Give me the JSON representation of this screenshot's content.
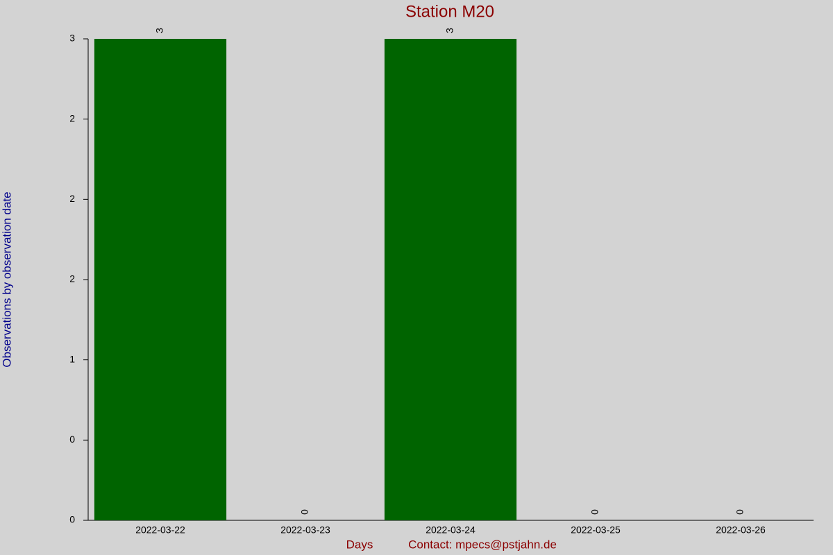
{
  "chart_data": {
    "type": "bar",
    "title": "Station M20",
    "x_label": "Days",
    "y_label": "Observations by observation date",
    "footer": "Contact: mpecs@pstjahn.de",
    "categories": [
      "2022-03-22",
      "2022-03-23",
      "2022-03-24",
      "2022-03-25",
      "2022-03-26"
    ],
    "values": [
      3,
      0,
      3,
      0,
      0
    ],
    "color": "#006400",
    "ylim": [
      0,
      3
    ],
    "yticks": [
      0,
      {
        "value": 0.5,
        "label": "0"
      },
      1,
      {
        "value": 1.5,
        "label": "2"
      },
      2,
      {
        "value": 2.5,
        "label": "2"
      },
      3
    ],
    "grid": false
  }
}
